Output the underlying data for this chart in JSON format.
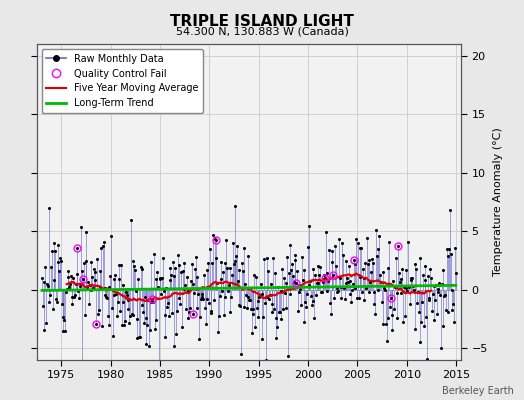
{
  "title": "TRIPLE ISLAND LIGHT",
  "subtitle": "54.300 N, 130.883 W (Canada)",
  "ylabel": "Temperature Anomaly (°C)",
  "watermark": "Berkeley Earth",
  "ylim": [
    -6,
    21
  ],
  "yticks": [
    -5,
    0,
    5,
    10,
    15,
    20
  ],
  "xlim": [
    1972.5,
    2015.5
  ],
  "xticks": [
    1975,
    1980,
    1985,
    1990,
    1995,
    2000,
    2005,
    2010,
    2015
  ],
  "bg_color": "#e8e8e8",
  "plot_bg_color": "#f2f2f2",
  "bar_color": "#6666cc",
  "moving_avg_color": "#dd0000",
  "trend_color": "#00bb00",
  "qc_fail_color": "#ff00ff",
  "seed": 12
}
